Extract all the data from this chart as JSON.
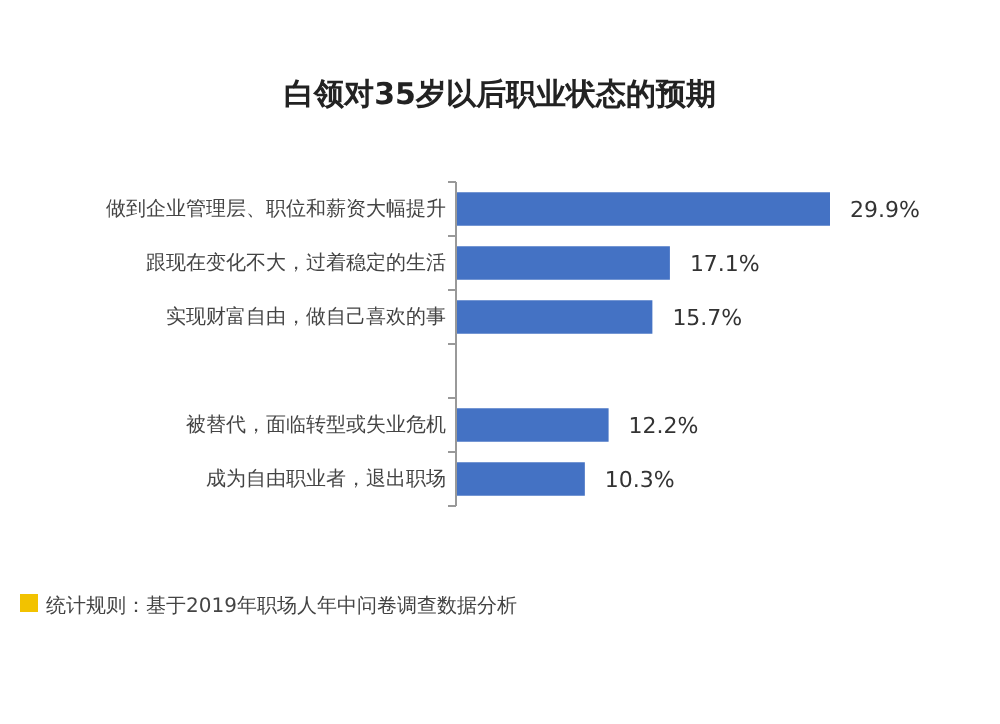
{
  "chart_data": {
    "type": "bar",
    "orientation": "horizontal",
    "title": "白领对35岁以后职业状态的预期",
    "categories": [
      "做到企业管理层、职位和薪资大幅提升",
      "跟现在变化不大，过着稳定的生活",
      "实现财富自由，做自己喜欢的事",
      null,
      "被替代，面临转型或失业危机",
      "成为自由职业者，退出职场"
    ],
    "values": [
      29.9,
      17.1,
      15.7,
      null,
      12.2,
      10.3
    ],
    "value_labels": [
      "29.9%",
      "17.1%",
      "15.7%",
      null,
      "12.2%",
      "10.3%"
    ],
    "color": "#4472c4",
    "annotations": [
      "统计规则：基于2019年职场人年中问卷调查数据分析"
    ]
  }
}
